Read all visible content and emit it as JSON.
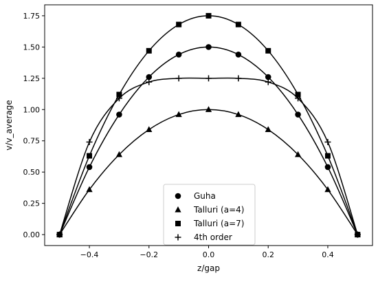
{
  "chart_data": {
    "type": "line",
    "xlabel": "z/gap",
    "ylabel": "v/v_average",
    "xlim": [
      -0.55,
      0.55
    ],
    "ylim": [
      -0.0875,
      1.8375
    ],
    "x_ticks": [
      -0.4,
      -0.2,
      0.0,
      0.2,
      0.4
    ],
    "x_tick_labels": [
      "−0.4",
      "−0.2",
      "0.0",
      "0.2",
      "0.4"
    ],
    "y_ticks": [
      0.0,
      0.25,
      0.5,
      0.75,
      1.0,
      1.25,
      1.5,
      1.75
    ],
    "y_tick_labels": [
      "0.00",
      "0.25",
      "0.50",
      "0.75",
      "1.00",
      "1.25",
      "1.50",
      "1.75"
    ],
    "grid": false,
    "legend_position": "bottom-center",
    "line_color": "#000000",
    "x": [
      -0.5,
      -0.4,
      -0.3,
      -0.2,
      -0.1,
      0.0,
      0.1,
      0.2,
      0.3,
      0.4,
      0.5
    ],
    "series": [
      {
        "name": "Guha",
        "marker": "circle",
        "values": [
          0.0,
          0.54,
          0.96,
          1.26,
          1.44,
          1.5,
          1.44,
          1.26,
          0.96,
          0.54,
          0.0
        ]
      },
      {
        "name": "Talluri (a=4)",
        "marker": "triangle",
        "values": [
          0.0,
          0.36,
          0.64,
          0.84,
          0.96,
          1.0,
          0.96,
          0.84,
          0.64,
          0.36,
          0.0
        ]
      },
      {
        "name": "Talluri (a=7)",
        "marker": "square",
        "values": [
          0.0,
          0.63,
          1.12,
          1.47,
          1.68,
          1.75,
          1.68,
          1.47,
          1.12,
          0.63,
          0.0
        ]
      },
      {
        "name": "4th order",
        "marker": "plus",
        "values": [
          0.0,
          0.74,
          1.09,
          1.22,
          1.25,
          1.25,
          1.25,
          1.22,
          1.09,
          0.74,
          0.0
        ]
      }
    ]
  }
}
